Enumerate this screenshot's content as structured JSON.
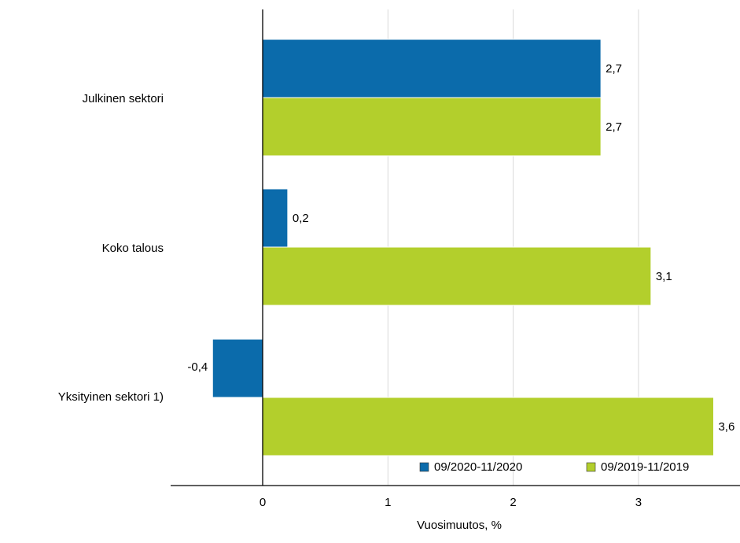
{
  "chart_data": {
    "type": "bar",
    "orientation": "horizontal",
    "categories": [
      "Julkinen sektori",
      "Koko talous",
      "Yksityinen sektori 1)"
    ],
    "series": [
      {
        "name": "09/2020-11/2020",
        "values": [
          2.7,
          0.2,
          -0.4
        ],
        "labels": [
          "2,7",
          "0,2",
          "-0,4"
        ],
        "color": "#0b6bab"
      },
      {
        "name": "09/2019-11/2019",
        "values": [
          2.7,
          3.1,
          3.6
        ],
        "labels": [
          "2,7",
          "3,1",
          "3,6"
        ],
        "color": "#b3cf2c"
      }
    ],
    "xlabel": "Vuosimuutos, %",
    "xlim": [
      -0.7,
      3.8
    ],
    "xticks": [
      "0",
      "1",
      "2",
      "3"
    ],
    "grid": "vertical",
    "legend": "bottom-right"
  }
}
